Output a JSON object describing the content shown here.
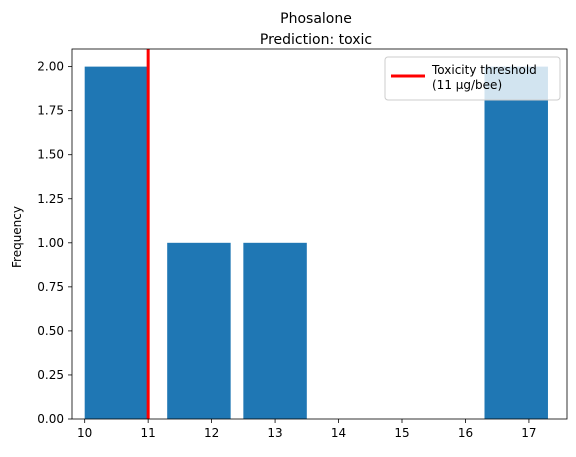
{
  "chart_data": {
    "type": "bar",
    "title": "Phosalone",
    "subtitle": "Prediction: toxic",
    "xlabel": "",
    "ylabel": "Frequency",
    "xlim": [
      9.8,
      17.6
    ],
    "ylim": [
      0,
      2.1
    ],
    "xticks": [
      10,
      11,
      12,
      13,
      14,
      15,
      16,
      17
    ],
    "yticks": [
      "0.00",
      "0.25",
      "0.50",
      "0.75",
      "1.00",
      "1.25",
      "1.50",
      "1.75",
      "2.00"
    ],
    "bins": [
      {
        "x_start": 10.0,
        "x_end": 11.0,
        "value": 2
      },
      {
        "x_start": 11.3,
        "x_end": 12.3,
        "value": 1
      },
      {
        "x_start": 12.5,
        "x_end": 13.5,
        "value": 1
      },
      {
        "x_start": 16.3,
        "x_end": 17.3,
        "value": 2
      }
    ],
    "bar_color": "#1f77b4",
    "threshold": {
      "x": 11,
      "label_line1": "Toxicity threshold",
      "label_line2": "(11 µg/bee)",
      "color": "#ff0000"
    },
    "legend_position": "top-right",
    "grid": false
  }
}
